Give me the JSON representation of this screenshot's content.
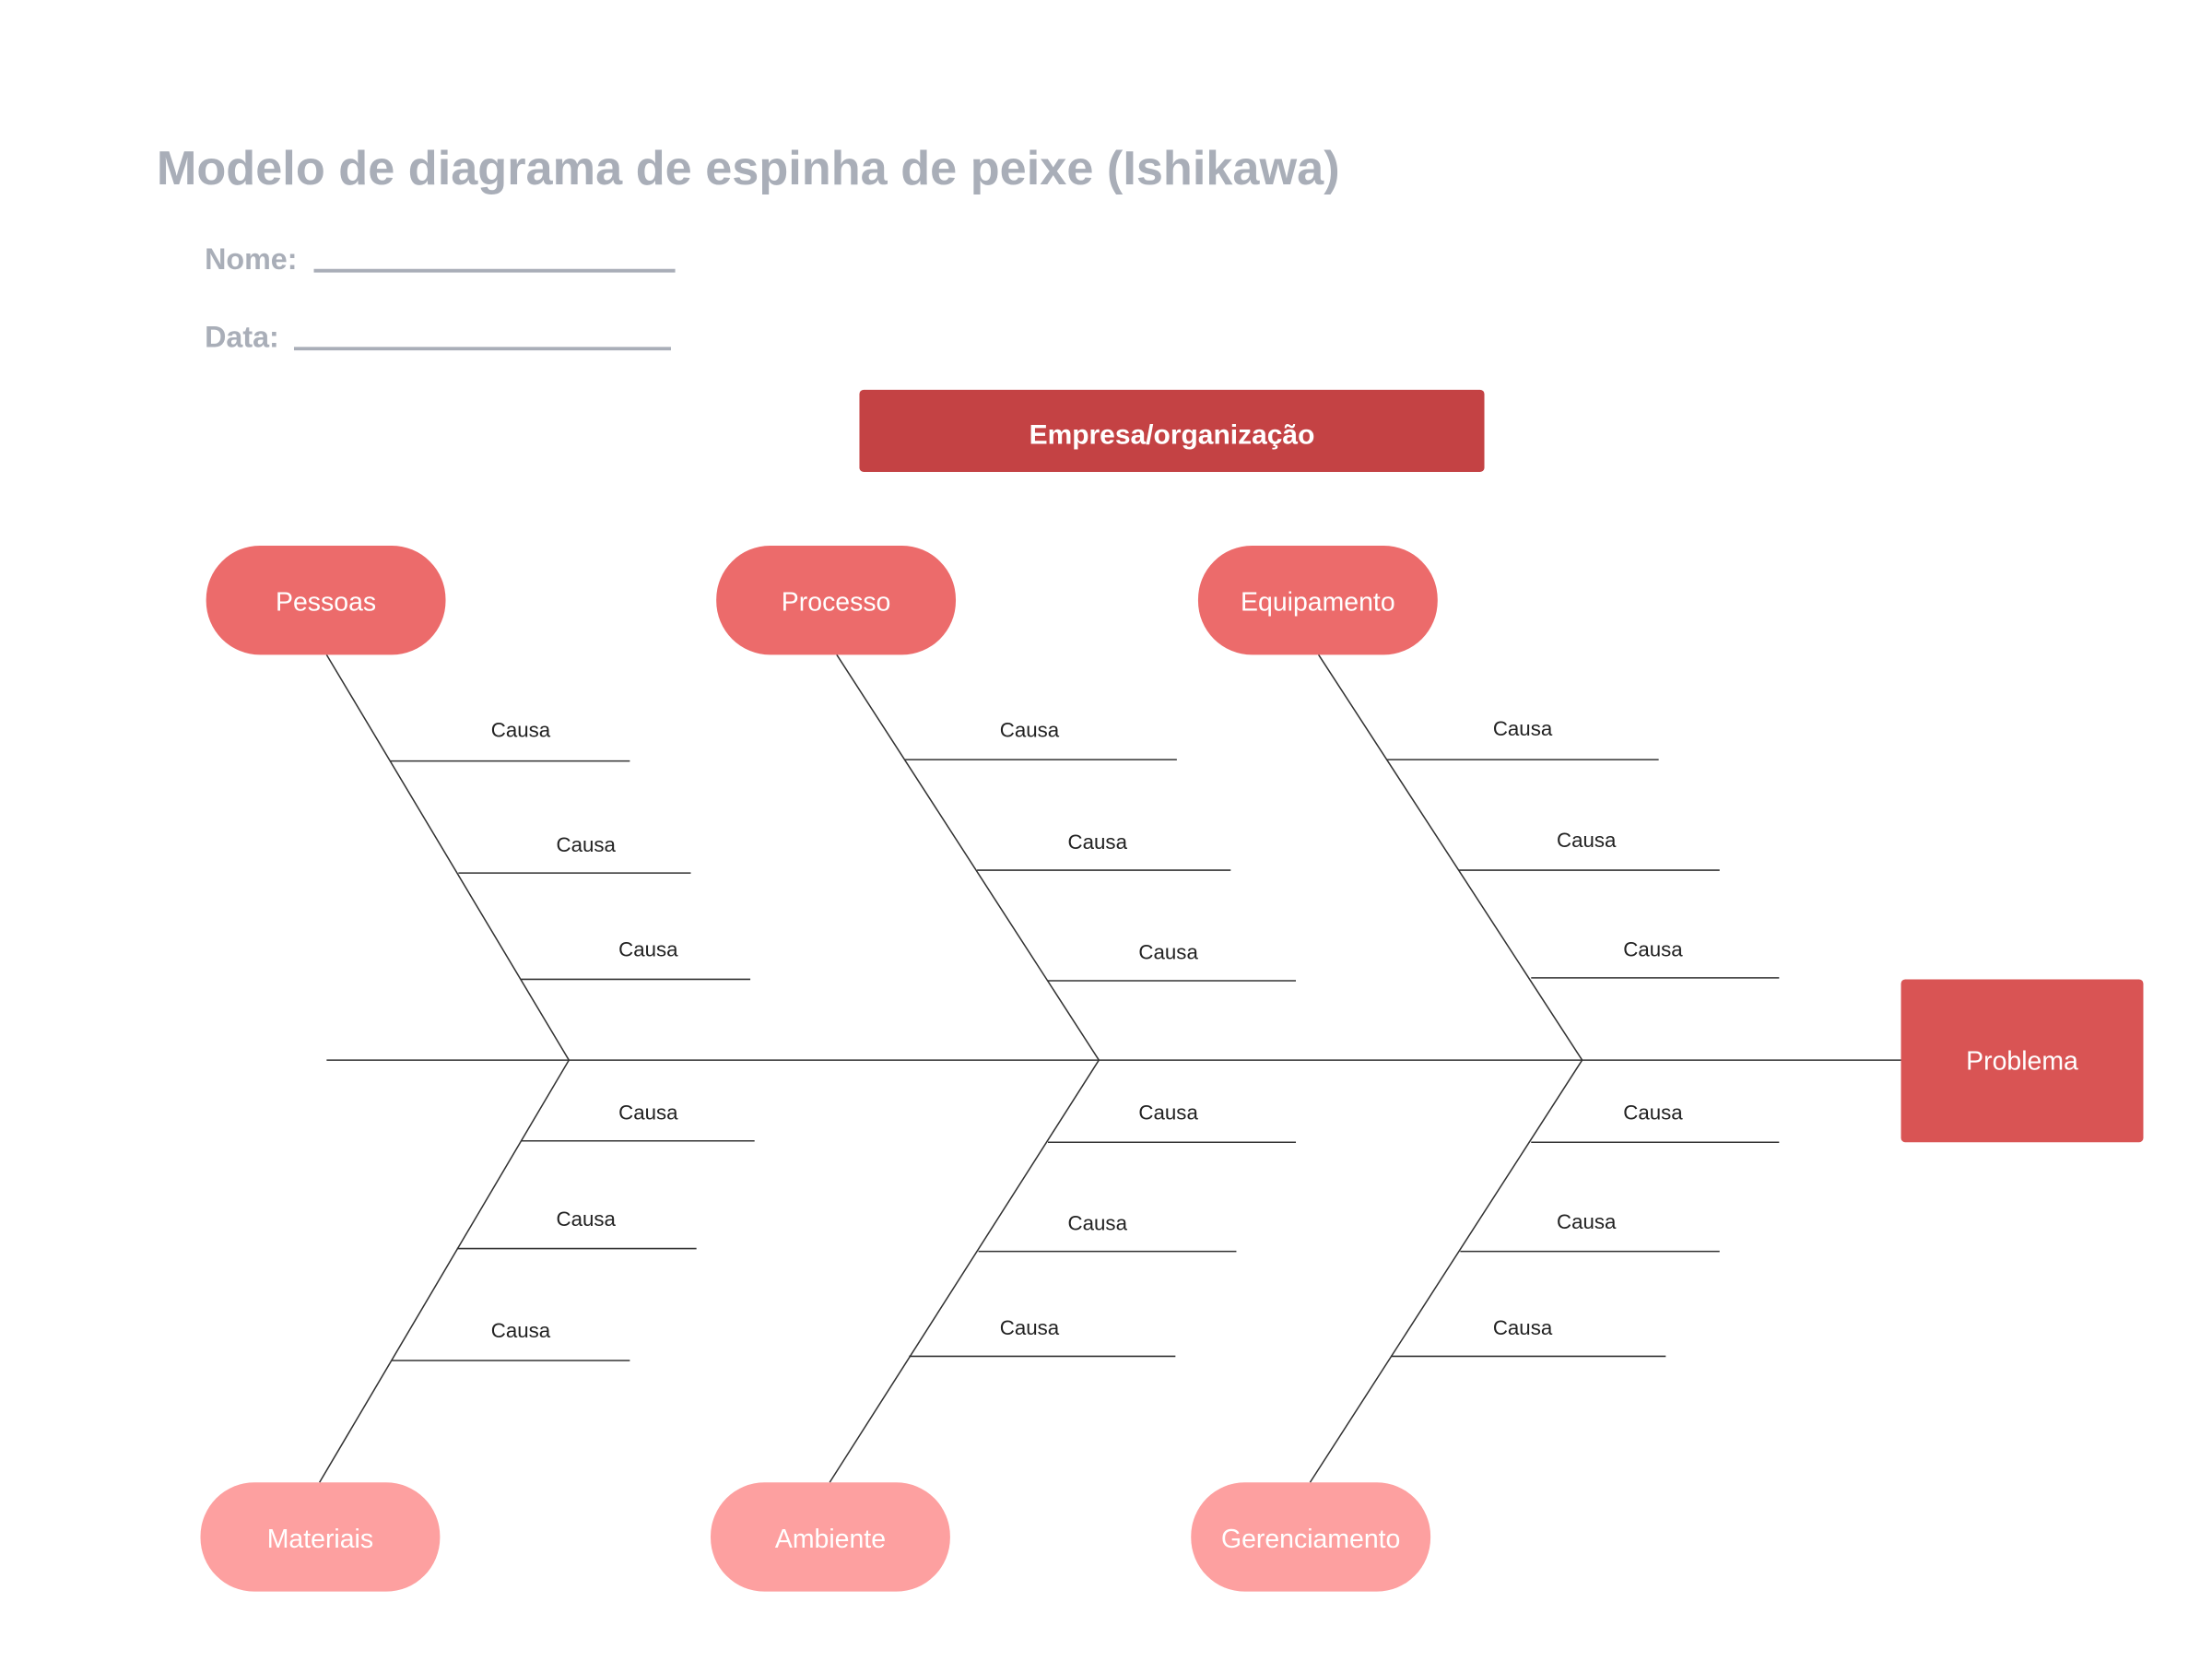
{
  "title": "Modelo de diagrama de espinha de peixe (Ishikawa)",
  "fields": {
    "name_label": "Nome:",
    "date_label": "Data:"
  },
  "header": {
    "label": "Empresa/organização"
  },
  "problem": {
    "label": "Problema"
  },
  "categories_top": [
    {
      "label": "Pessoas",
      "causes": [
        "Causa",
        "Causa",
        "Causa"
      ]
    },
    {
      "label": "Processo",
      "causes": [
        "Causa",
        "Causa",
        "Causa"
      ]
    },
    {
      "label": "Equipamento",
      "causes": [
        "Causa",
        "Causa",
        "Causa"
      ]
    }
  ],
  "categories_bottom": [
    {
      "label": "Materiais",
      "causes": [
        "Causa",
        "Causa",
        "Causa"
      ]
    },
    {
      "label": "Ambiente",
      "causes": [
        "Causa",
        "Causa",
        "Causa"
      ]
    },
    {
      "label": "Gerenciamento",
      "causes": [
        "Causa",
        "Causa",
        "Causa"
      ]
    }
  ],
  "colors": {
    "header": "#c44244",
    "problem": "#d95454",
    "top_category": "#ec6b6b",
    "bottom_category": "#fda0a0",
    "muted_text": "#a9aeb8",
    "line": "#333333"
  }
}
